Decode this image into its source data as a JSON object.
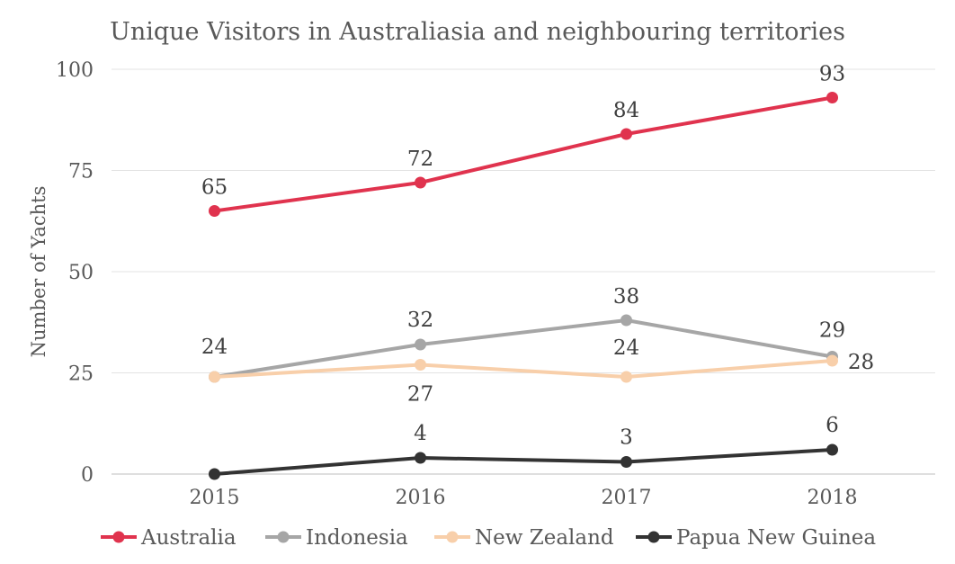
{
  "chart_data": {
    "type": "line",
    "title": "Unique Visitors in Australiasia and neighbouring territories",
    "xlabel": "",
    "ylabel": "Number of Yachts",
    "categories": [
      "2015",
      "2016",
      "2017",
      "2018"
    ],
    "ylim": [
      0,
      100
    ],
    "yticks": [
      0,
      25,
      50,
      75,
      100
    ],
    "grid": true,
    "legend_position": "bottom",
    "series": [
      {
        "name": "Australia",
        "color": "#e0334e",
        "values": [
          65,
          72,
          84,
          93
        ]
      },
      {
        "name": "Indonesia",
        "color": "#a6a6a6",
        "values": [
          24,
          32,
          38,
          29
        ]
      },
      {
        "name": "New Zealand",
        "color": "#f8cfaa",
        "values": [
          24,
          27,
          24,
          28
        ]
      },
      {
        "name": "Papua New Guinea",
        "color": "#333333",
        "values": [
          0,
          4,
          3,
          6
        ]
      }
    ]
  }
}
